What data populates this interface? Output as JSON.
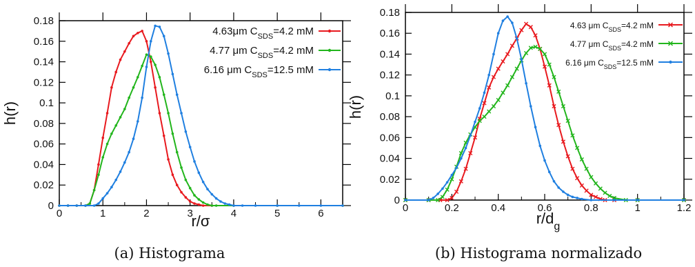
{
  "captions": [
    "(a) Histograma",
    "(b) Histograma normalizado"
  ],
  "chart_data": [
    {
      "type": "line",
      "xlabel": "r/σ",
      "ylabel": "h(r)",
      "xlim": [
        0,
        6.5
      ],
      "ylim": [
        0,
        0.18
      ],
      "xticks": [
        0,
        1,
        2,
        3,
        4,
        5,
        6
      ],
      "xtick_labels": [
        "0",
        "1",
        "2",
        "3",
        "4",
        "5",
        "6"
      ],
      "yticks": [
        0,
        0.02,
        0.04,
        0.06,
        0.08,
        0.1,
        0.12,
        0.14,
        0.16,
        0.18
      ],
      "ytick_labels": [
        "0",
        "0.02",
        "0.04",
        "0.06",
        "0.08",
        "0.1",
        "0.12",
        "0.14",
        "0.16",
        "0.18"
      ],
      "legend_position": "top-right",
      "series": [
        {
          "name": "4.63μm C_SDS=4.2 mM",
          "color": "#e8191e",
          "marker": "dot",
          "x": [
            0,
            0.2,
            0.4,
            0.6,
            0.7,
            0.8,
            0.9,
            1.0,
            1.1,
            1.2,
            1.3,
            1.4,
            1.5,
            1.6,
            1.7,
            1.8,
            1.9,
            2.0,
            2.1,
            2.2,
            2.3,
            2.4,
            2.5,
            2.6,
            2.7,
            2.8,
            2.9,
            3.0,
            3.1,
            3.2,
            3.3,
            3.5,
            4.0,
            5.0,
            6.5
          ],
          "y": [
            0,
            0,
            0,
            0,
            0.002,
            0.015,
            0.04,
            0.066,
            0.09,
            0.115,
            0.13,
            0.142,
            0.15,
            0.158,
            0.165,
            0.168,
            0.17,
            0.16,
            0.14,
            0.115,
            0.09,
            0.068,
            0.045,
            0.03,
            0.02,
            0.013,
            0.008,
            0.004,
            0.002,
            0.001,
            0,
            0,
            0,
            0,
            0
          ]
        },
        {
          "name": "4.77 μm C_SDS=4.2 mM",
          "color": "#22b51c",
          "marker": "dot",
          "x": [
            0,
            0.2,
            0.4,
            0.6,
            0.7,
            0.8,
            0.9,
            1.0,
            1.1,
            1.2,
            1.3,
            1.4,
            1.5,
            1.6,
            1.7,
            1.8,
            1.9,
            2.0,
            2.1,
            2.2,
            2.3,
            2.4,
            2.5,
            2.6,
            2.7,
            2.8,
            2.9,
            3.0,
            3.1,
            3.2,
            3.3,
            3.4,
            3.5,
            3.6,
            4.0,
            5.0,
            6.5
          ],
          "y": [
            0,
            0,
            0,
            0,
            0.002,
            0.015,
            0.03,
            0.047,
            0.06,
            0.07,
            0.078,
            0.086,
            0.094,
            0.105,
            0.115,
            0.125,
            0.136,
            0.147,
            0.145,
            0.137,
            0.125,
            0.108,
            0.09,
            0.07,
            0.052,
            0.037,
            0.025,
            0.017,
            0.01,
            0.006,
            0.003,
            0.001,
            0,
            0,
            0,
            0,
            0
          ]
        },
        {
          "name": "6.16 μm C_SDS=12.5 mM",
          "color": "#1f7fe0",
          "marker": "dot",
          "x": [
            0,
            0.2,
            0.4,
            0.6,
            0.8,
            0.9,
            1.0,
            1.1,
            1.2,
            1.3,
            1.4,
            1.5,
            1.6,
            1.7,
            1.8,
            1.9,
            2.0,
            2.1,
            2.2,
            2.3,
            2.4,
            2.5,
            2.6,
            2.7,
            2.8,
            2.9,
            3.0,
            3.1,
            3.2,
            3.3,
            3.4,
            3.5,
            3.6,
            3.7,
            3.8,
            3.9,
            4.0,
            4.2,
            4.5,
            5.0,
            5.5,
            6.0,
            6.5
          ],
          "y": [
            0,
            0,
            0,
            0,
            0,
            0.002,
            0.007,
            0.012,
            0.018,
            0.025,
            0.033,
            0.042,
            0.052,
            0.065,
            0.082,
            0.105,
            0.135,
            0.16,
            0.175,
            0.174,
            0.165,
            0.148,
            0.128,
            0.108,
            0.09,
            0.072,
            0.057,
            0.043,
            0.032,
            0.023,
            0.016,
            0.011,
            0.007,
            0.004,
            0.002,
            0.001,
            0,
            0,
            0,
            0,
            0,
            0,
            0
          ]
        }
      ]
    },
    {
      "type": "line",
      "xlabel": "r/d_g",
      "ylabel": "h(r)",
      "xlim": [
        0,
        1.2
      ],
      "ylim": [
        0,
        0.18
      ],
      "xticks": [
        0,
        0.2,
        0.4,
        0.6,
        0.8,
        1,
        1.2
      ],
      "xtick_labels": [
        "0",
        "0.2",
        "0.4",
        "0.6",
        "0.8",
        "1",
        "1.2"
      ],
      "yticks": [
        0,
        0.02,
        0.04,
        0.06,
        0.08,
        0.1,
        0.12,
        0.14,
        0.16,
        0.18
      ],
      "ytick_labels": [
        "0",
        "0.02",
        "0.04",
        "0.06",
        "0.08",
        "0.1",
        "0.12",
        "0.14",
        "0.16",
        "0.18"
      ],
      "legend_position": "top-right",
      "series": [
        {
          "name": "4.63 μm C_SDS=4.2 mM",
          "color": "#e8191e",
          "marker": "x",
          "x": [
            0,
            0.1,
            0.15,
            0.18,
            0.2,
            0.22,
            0.24,
            0.26,
            0.28,
            0.3,
            0.32,
            0.34,
            0.36,
            0.38,
            0.4,
            0.42,
            0.44,
            0.46,
            0.48,
            0.5,
            0.52,
            0.54,
            0.56,
            0.58,
            0.6,
            0.62,
            0.64,
            0.66,
            0.68,
            0.7,
            0.72,
            0.74,
            0.76,
            0.78,
            0.8,
            0.82,
            0.84,
            0.86,
            0.9,
            1.0,
            1.2
          ],
          "y": [
            0,
            0,
            0,
            0,
            0.002,
            0.008,
            0.018,
            0.03,
            0.045,
            0.06,
            0.078,
            0.093,
            0.108,
            0.118,
            0.126,
            0.133,
            0.14,
            0.148,
            0.155,
            0.163,
            0.169,
            0.166,
            0.158,
            0.145,
            0.128,
            0.11,
            0.09,
            0.072,
            0.056,
            0.042,
            0.03,
            0.021,
            0.014,
            0.009,
            0.005,
            0.003,
            0.001,
            0,
            0,
            0,
            0
          ]
        },
        {
          "name": "4.77 μm C_SDS=4.2 mM",
          "color": "#22b51c",
          "marker": "x",
          "x": [
            0,
            0.1,
            0.14,
            0.16,
            0.18,
            0.2,
            0.22,
            0.24,
            0.26,
            0.28,
            0.3,
            0.32,
            0.34,
            0.36,
            0.38,
            0.4,
            0.42,
            0.44,
            0.46,
            0.48,
            0.5,
            0.52,
            0.54,
            0.56,
            0.58,
            0.6,
            0.62,
            0.64,
            0.66,
            0.68,
            0.7,
            0.72,
            0.74,
            0.76,
            0.78,
            0.8,
            0.82,
            0.84,
            0.86,
            0.88,
            0.9,
            0.95,
            1.0,
            1.2
          ],
          "y": [
            0,
            0,
            0,
            0.003,
            0.01,
            0.02,
            0.032,
            0.045,
            0.055,
            0.063,
            0.07,
            0.076,
            0.08,
            0.085,
            0.09,
            0.096,
            0.103,
            0.11,
            0.118,
            0.126,
            0.134,
            0.141,
            0.146,
            0.147,
            0.145,
            0.14,
            0.13,
            0.118,
            0.104,
            0.09,
            0.076,
            0.062,
            0.05,
            0.039,
            0.03,
            0.022,
            0.016,
            0.011,
            0.007,
            0.004,
            0.002,
            0,
            0,
            0
          ]
        },
        {
          "name": "6.16 μm C_SDS=12.5 mM",
          "color": "#1f7fe0",
          "marker": "dot",
          "x": [
            0,
            0.1,
            0.12,
            0.14,
            0.16,
            0.18,
            0.2,
            0.22,
            0.24,
            0.26,
            0.28,
            0.3,
            0.32,
            0.34,
            0.36,
            0.38,
            0.4,
            0.42,
            0.44,
            0.46,
            0.48,
            0.5,
            0.52,
            0.54,
            0.56,
            0.58,
            0.6,
            0.62,
            0.64,
            0.66,
            0.68,
            0.7,
            0.72,
            0.74,
            0.76,
            0.8,
            0.9,
            1.0,
            1.2
          ],
          "y": [
            0,
            0,
            0.002,
            0.006,
            0.011,
            0.017,
            0.024,
            0.031,
            0.04,
            0.05,
            0.062,
            0.075,
            0.088,
            0.103,
            0.12,
            0.14,
            0.16,
            0.172,
            0.176,
            0.17,
            0.155,
            0.135,
            0.112,
            0.09,
            0.07,
            0.052,
            0.038,
            0.027,
            0.018,
            0.012,
            0.008,
            0.005,
            0.003,
            0.002,
            0.001,
            0,
            0,
            0,
            0
          ]
        }
      ]
    }
  ]
}
